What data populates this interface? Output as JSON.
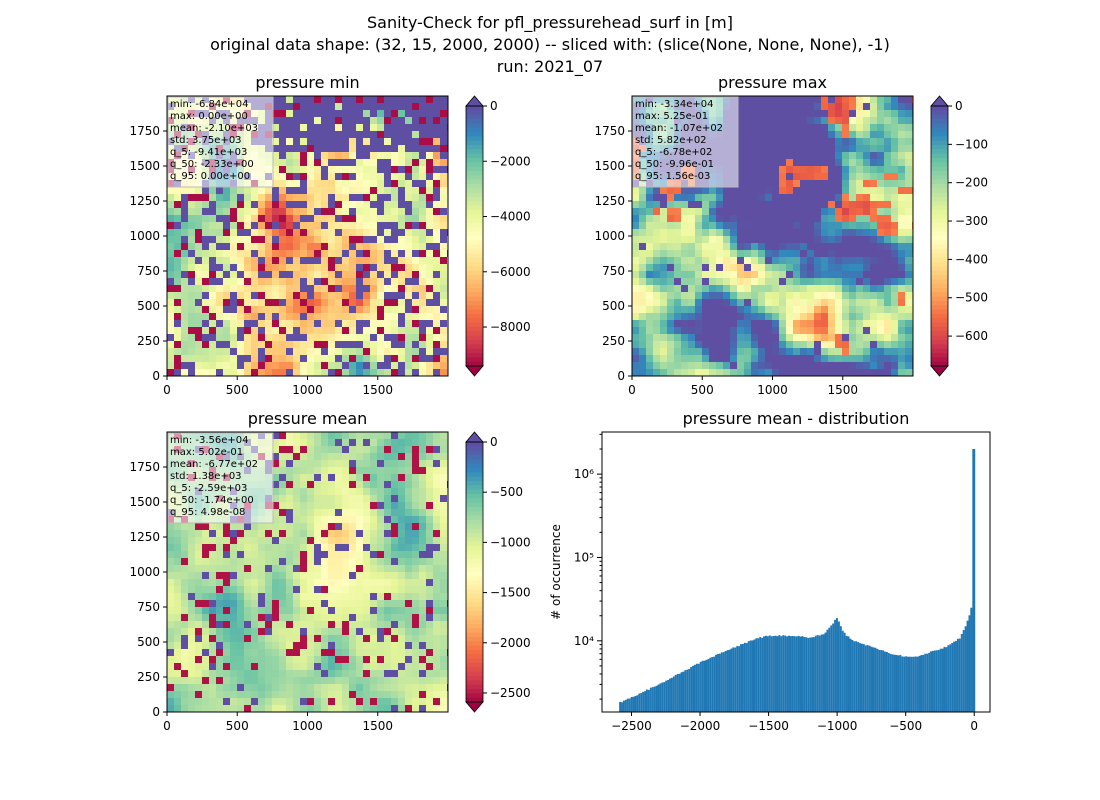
{
  "figure": {
    "title_line1": "Sanity-Check for pfl_pressurehead_surf in [m]",
    "title_line2": "original data shape: (32, 15, 2000, 2000) -- sliced with: (slice(None, None, None), -1)",
    "title_line3": "run: 2021_07"
  },
  "chart_data": [
    {
      "type": "heatmap",
      "title": "pressure min",
      "x_ticks": [
        "0",
        "500",
        "1000",
        "1500"
      ],
      "y_ticks": [
        "0",
        "250",
        "500",
        "750",
        "1000",
        "1250",
        "1500",
        "1750"
      ],
      "xlim": [
        0,
        2000
      ],
      "ylim": [
        0,
        2000
      ],
      "colormap": "Spectral",
      "colorbar_range": [
        -9410,
        0
      ],
      "colorbar_ticks": [
        "0",
        "−2000",
        "−4000",
        "−6000",
        "−8000"
      ],
      "colorbar_tick_values": [
        0,
        -2000,
        -4000,
        -6000,
        -8000
      ],
      "stats": [
        "min: -6.84e+04",
        "max: 0.00e+00",
        "mean: -2.10e+03",
        "std: 3.75e+03",
        "q_5: -9.41e+03",
        "q_50: -2.33e+00",
        "q_95: 0.00e+00"
      ]
    },
    {
      "type": "heatmap",
      "title": "pressure max",
      "x_ticks": [
        "0",
        "500",
        "1000",
        "1500"
      ],
      "y_ticks": [
        "0",
        "250",
        "500",
        "750",
        "1000",
        "1250",
        "1500",
        "1750"
      ],
      "xlim": [
        0,
        2000
      ],
      "ylim": [
        0,
        2000
      ],
      "colormap": "Spectral",
      "colorbar_range": [
        -678,
        0
      ],
      "colorbar_ticks": [
        "0",
        "−100",
        "−200",
        "−300",
        "−400",
        "−500",
        "−600"
      ],
      "colorbar_tick_values": [
        0,
        -100,
        -200,
        -300,
        -400,
        -500,
        -600
      ],
      "stats": [
        "min: -3.34e+04",
        "max: 5.25e-01",
        "mean: -1.07e+02",
        "std: 5.82e+02",
        "q_5: -6.78e+02",
        "q_50: -9.96e-01",
        "q_95: 1.56e-03"
      ]
    },
    {
      "type": "heatmap",
      "title": "pressure mean",
      "x_ticks": [
        "0",
        "500",
        "1000",
        "1500"
      ],
      "y_ticks": [
        "0",
        "250",
        "500",
        "750",
        "1000",
        "1250",
        "1500",
        "1750"
      ],
      "xlim": [
        0,
        2000
      ],
      "ylim": [
        0,
        2000
      ],
      "colormap": "Spectral",
      "colorbar_range": [
        -2590,
        0
      ],
      "colorbar_ticks": [
        "0",
        "−500",
        "−1000",
        "−1500",
        "−2000",
        "−2500"
      ],
      "colorbar_tick_values": [
        0,
        -500,
        -1000,
        -1500,
        -2000,
        -2500
      ],
      "stats": [
        "min: -3.56e+04",
        "max: 5.02e-01",
        "mean: -6.77e+02",
        "std: 1.38e+03",
        "q_5: -2.59e+03",
        "q_50: -1.74e+00",
        "q_95: 4.98e-08"
      ]
    },
    {
      "type": "bar",
      "title": "pressure mean - distribution",
      "ylabel": "# of occurrence",
      "xlabel": "",
      "y_scale": "log",
      "xlim": [
        -2715,
        115
      ],
      "ylim": [
        1400,
        3200000
      ],
      "x_ticks": [
        "−2500",
        "−2000",
        "−1500",
        "−1000",
        "−500",
        "0"
      ],
      "x_tick_values": [
        -2500,
        -2000,
        -1500,
        -1000,
        -500,
        0
      ],
      "y_tick_labels": [
        "10⁴",
        "10⁵",
        "10⁶"
      ],
      "y_tick_values": [
        10000,
        100000,
        1000000
      ],
      "bar_color": "#1f77b4",
      "x": [
        -2590,
        -2500,
        -2400,
        -2300,
        -2200,
        -2100,
        -2000,
        -1900,
        -1800,
        -1700,
        -1600,
        -1500,
        -1400,
        -1300,
        -1200,
        -1100,
        -1050,
        -1000,
        -950,
        -900,
        -850,
        -800,
        -700,
        -600,
        -500,
        -400,
        -300,
        -200,
        -100,
        -50,
        -20,
        0
      ],
      "values": [
        1800,
        2100,
        2500,
        3000,
        3700,
        4500,
        5500,
        6500,
        7700,
        9000,
        10500,
        11500,
        11500,
        11500,
        11000,
        12000,
        14500,
        19000,
        12500,
        10500,
        9500,
        9000,
        8000,
        7000,
        6500,
        6500,
        7500,
        8500,
        11000,
        17000,
        25000,
        2000000
      ]
    }
  ]
}
